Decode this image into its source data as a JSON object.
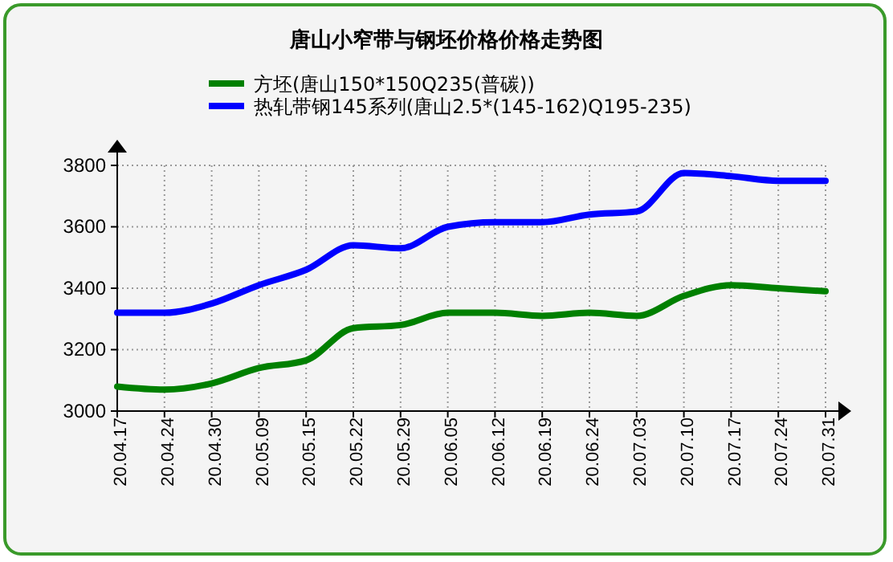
{
  "chart_data": {
    "type": "line",
    "title": "唐山小窄带与钢坯价格价格走势图",
    "categories": [
      "20.04.17",
      "20.04.24",
      "20.04.30",
      "20.05.09",
      "20.05.15",
      "20.05.22",
      "20.05.29",
      "20.06.05",
      "20.06.12",
      "20.06.19",
      "20.06.24",
      "20.07.03",
      "20.07.10",
      "20.07.17",
      "20.07.24",
      "20.07.31"
    ],
    "series": [
      {
        "name": "方坯(唐山150*150Q235(普碳))",
        "color": "#008000",
        "values": [
          3080,
          3070,
          3090,
          3140,
          3165,
          3270,
          3280,
          3320,
          3320,
          3310,
          3320,
          3310,
          3375,
          3410,
          3400,
          3390
        ]
      },
      {
        "name": "热轧带钢145系列(唐山2.5*(145-162)Q195-235)",
        "color": "#0000ff",
        "values": [
          3320,
          3320,
          3350,
          3410,
          3460,
          3540,
          3530,
          3600,
          3615,
          3615,
          3640,
          3650,
          3775,
          3765,
          3750,
          3750
        ]
      }
    ],
    "ylim": [
      3000,
      3800
    ],
    "yticks": [
      3000,
      3200,
      3400,
      3600,
      3800
    ],
    "grid": true,
    "legend": "top",
    "line_style": "solid",
    "marker": "none"
  }
}
